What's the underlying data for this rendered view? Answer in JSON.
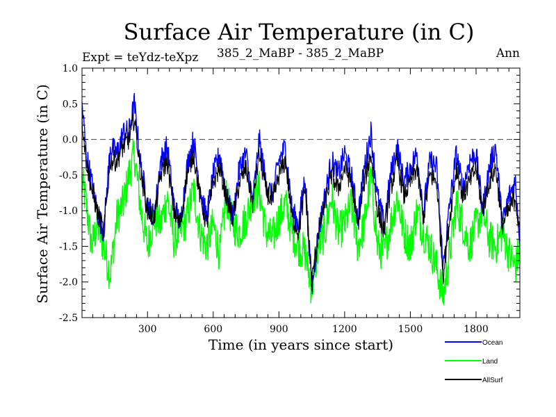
{
  "chart_data": {
    "type": "line",
    "title": "Surface Air Temperature (in C)",
    "subtitle_left": "Expt = teYdz-teXpz",
    "subtitle_center": "385_2_MaBP - 385_2_MaBP",
    "subtitle_right": "Ann",
    "xlabel": "Time (in years since start)",
    "ylabel": "Surface Air Temperature (in C)",
    "xlim": [
      1,
      2000
    ],
    "ylim": [
      -2.5,
      1.0
    ],
    "xticks": [
      300,
      600,
      900,
      1200,
      1500,
      1800
    ],
    "xtick_labels": [
      "300",
      "600",
      "900",
      "1200",
      "1500",
      "1800"
    ],
    "yticks": [
      -2.5,
      -2.0,
      -1.5,
      -1.0,
      -0.5,
      0.0,
      0.5,
      1.0
    ],
    "ytick_labels": [
      "-2.5",
      "-2.0",
      "-1.5",
      "-1.0",
      "-0.5",
      "0.0",
      "0.5",
      "1.0"
    ],
    "reference_line": {
      "y": 0.0,
      "style": "dashed"
    },
    "legend_position": "bottom-right",
    "series": [
      {
        "name": "Land",
        "color": "#00ff00",
        "x": [
          1,
          20,
          45,
          70,
          100,
          130,
          160,
          190,
          215,
          240,
          270,
          300,
          330,
          360,
          390,
          420,
          450,
          480,
          510,
          540,
          570,
          600,
          630,
          660,
          690,
          720,
          750,
          780,
          810,
          840,
          870,
          900,
          930,
          960,
          990,
          1020,
          1050,
          1080,
          1110,
          1140,
          1170,
          1200,
          1230,
          1260,
          1290,
          1320,
          1350,
          1380,
          1410,
          1440,
          1470,
          1500,
          1530,
          1560,
          1590,
          1620,
          1650,
          1680,
          1710,
          1740,
          1770,
          1800,
          1830,
          1860,
          1890,
          1920,
          1950,
          1980,
          2000
        ],
        "values": [
          -0.6,
          -0.9,
          -1.5,
          -1.2,
          -1.5,
          -1.9,
          -1.1,
          -0.9,
          -0.5,
          -0.2,
          -1.0,
          -1.5,
          -1.1,
          -1.2,
          -0.8,
          -1.4,
          -1.3,
          -1.1,
          -0.7,
          -1.3,
          -1.5,
          -1.2,
          -1.6,
          -0.8,
          -1.2,
          -1.3,
          -1.1,
          -0.8,
          -0.7,
          -1.3,
          -1.4,
          -1.1,
          -0.9,
          -1.3,
          -1.5,
          -1.6,
          -2.1,
          -1.5,
          -1.3,
          -0.8,
          -1.3,
          -1.2,
          -0.9,
          -1.5,
          -1.2,
          -0.5,
          -1.5,
          -1.6,
          -1.2,
          -0.8,
          -1.3,
          -1.5,
          -1.0,
          -1.3,
          -1.5,
          -1.8,
          -2.2,
          -1.6,
          -0.9,
          -1.2,
          -1.5,
          -1.2,
          -1.0,
          -1.4,
          -1.5,
          -1.3,
          -1.6,
          -1.8,
          -1.5
        ]
      },
      {
        "name": "Ocean",
        "color": "#0000ff",
        "x": [
          1,
          20,
          45,
          70,
          100,
          130,
          160,
          190,
          215,
          240,
          270,
          300,
          330,
          360,
          390,
          420,
          450,
          480,
          510,
          540,
          570,
          600,
          630,
          660,
          690,
          720,
          750,
          780,
          810,
          840,
          870,
          900,
          930,
          960,
          990,
          1020,
          1050,
          1080,
          1110,
          1140,
          1170,
          1200,
          1230,
          1260,
          1290,
          1320,
          1350,
          1380,
          1410,
          1440,
          1470,
          1500,
          1530,
          1560,
          1590,
          1620,
          1650,
          1680,
          1710,
          1740,
          1770,
          1800,
          1830,
          1860,
          1890,
          1920,
          1950,
          1980,
          2000
        ],
        "values": [
          0.5,
          -0.2,
          -0.6,
          -1.0,
          -1.3,
          -0.1,
          -0.2,
          0.1,
          0.1,
          0.5,
          -0.4,
          -0.9,
          -1.1,
          -0.3,
          -0.1,
          -0.9,
          -1.2,
          -0.4,
          0.0,
          -0.7,
          -1.1,
          -0.5,
          -0.2,
          -0.8,
          -1.1,
          -0.4,
          -0.2,
          -0.9,
          0.0,
          -0.6,
          -0.8,
          -0.3,
          -0.1,
          -1.0,
          -1.2,
          -0.5,
          -2.1,
          -1.3,
          -0.8,
          -0.3,
          -0.5,
          -0.2,
          -0.5,
          -1.1,
          -0.4,
          0.1,
          -0.8,
          -1.2,
          -0.5,
          -0.1,
          -0.6,
          -0.4,
          -0.2,
          -1.0,
          -0.3,
          -0.4,
          -1.8,
          -0.9,
          -0.2,
          -0.7,
          -0.3,
          -0.2,
          -1.0,
          -0.4,
          -0.1,
          -1.2,
          -0.8,
          -0.6,
          -1.4
        ]
      },
      {
        "name": "AllSurf",
        "color": "#000000",
        "x": [
          1,
          20,
          45,
          70,
          100,
          130,
          160,
          190,
          215,
          240,
          270,
          300,
          330,
          360,
          390,
          420,
          450,
          480,
          510,
          540,
          570,
          600,
          630,
          660,
          690,
          720,
          750,
          780,
          810,
          840,
          870,
          900,
          930,
          960,
          990,
          1020,
          1050,
          1080,
          1110,
          1140,
          1170,
          1200,
          1230,
          1260,
          1290,
          1320,
          1350,
          1380,
          1410,
          1440,
          1470,
          1500,
          1530,
          1560,
          1590,
          1620,
          1650,
          1680,
          1710,
          1740,
          1770,
          1800,
          1830,
          1860,
          1890,
          1920,
          1950,
          1980,
          2000
        ],
        "values": [
          0.3,
          -0.3,
          -0.7,
          -1.0,
          -1.3,
          -0.3,
          -0.3,
          -0.1,
          0.0,
          0.3,
          -0.5,
          -1.0,
          -1.1,
          -0.5,
          -0.3,
          -1.0,
          -1.2,
          -0.5,
          -0.2,
          -0.8,
          -1.2,
          -0.6,
          -0.4,
          -0.8,
          -1.1,
          -0.6,
          -0.4,
          -0.9,
          -0.2,
          -0.7,
          -0.9,
          -0.5,
          -0.3,
          -1.1,
          -1.3,
          -0.7,
          -2.0,
          -1.3,
          -0.9,
          -0.5,
          -0.7,
          -0.4,
          -0.6,
          -1.2,
          -0.6,
          -0.2,
          -1.0,
          -1.3,
          -0.7,
          -0.3,
          -0.8,
          -0.6,
          -0.4,
          -1.1,
          -0.5,
          -0.6,
          -1.9,
          -1.1,
          -0.4,
          -0.8,
          -0.6,
          -0.4,
          -1.0,
          -0.6,
          -0.4,
          -1.2,
          -1.0,
          -0.8,
          -1.4
        ]
      }
    ],
    "legend": [
      {
        "label": "Ocean",
        "color": "#0000ff"
      },
      {
        "label": "Land",
        "color": "#00ff00"
      },
      {
        "label": "AllSurf",
        "color": "#000000"
      }
    ]
  }
}
